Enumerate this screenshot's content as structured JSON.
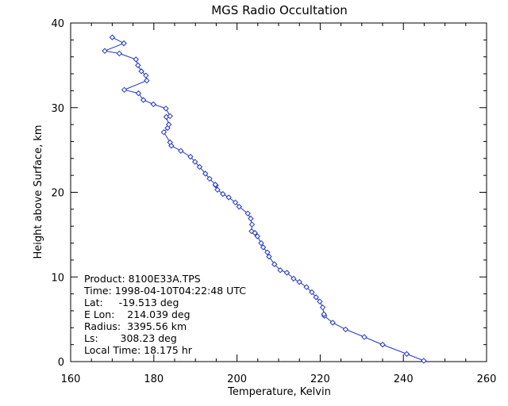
{
  "chart_data": {
    "type": "line",
    "title": "MGS Radio Occultation",
    "xlabel": "Temperature, Kelvin",
    "ylabel": "Height above Surface, km",
    "xlim": [
      160,
      260
    ],
    "ylim": [
      0,
      40
    ],
    "xticks": [
      "160",
      "180",
      "200",
      "220",
      "240",
      "260"
    ],
    "yticks": [
      "0",
      "10",
      "20",
      "30",
      "40"
    ],
    "grid": false,
    "line_color": "#1f36c8",
    "marker": "diamond",
    "series": [
      {
        "x": [
          244.9,
          240.8,
          235.0,
          230.6,
          226.1,
          223.0,
          221.0,
          220.9,
          220.6,
          219.9,
          219.0,
          218.0,
          216.7,
          215.0,
          213.6,
          212.0,
          210.4,
          209.0,
          207.7,
          207.3,
          206.3,
          205.8,
          204.9,
          204.3,
          203.5,
          203.6,
          203.3,
          202.6,
          200.5,
          199.6,
          198.0,
          196.6,
          195.3,
          194.9,
          194.8,
          193.4,
          192.4,
          191.0,
          189.9,
          188.8,
          186.5,
          184.2,
          183.9,
          182.4,
          183.3,
          183.6,
          183.0,
          183.9,
          182.9,
          179.9,
          177.5,
          176.3,
          172.9,
          178.3,
          178.1,
          177.0,
          176.2,
          175.7,
          171.7,
          168.2,
          172.8,
          170.0
        ],
        "y": [
          0.1,
          0.9,
          2.0,
          2.9,
          3.8,
          4.6,
          5.4,
          5.6,
          6.4,
          7.1,
          7.6,
          8.2,
          8.8,
          9.4,
          9.8,
          10.5,
          10.8,
          11.5,
          12.4,
          12.9,
          13.5,
          14.0,
          14.8,
          15.2,
          15.4,
          16.2,
          16.9,
          17.5,
          18.3,
          18.8,
          19.4,
          19.8,
          20.3,
          20.8,
          20.9,
          21.6,
          22.2,
          23.0,
          23.6,
          24.2,
          24.9,
          25.5,
          25.9,
          27.1,
          27.6,
          28.0,
          28.9,
          29.0,
          29.9,
          30.4,
          30.9,
          31.7,
          32.1,
          33.2,
          33.8,
          34.3,
          35.0,
          35.7,
          36.4,
          36.7,
          37.6,
          38.3
        ]
      }
    ]
  },
  "info": {
    "product": "Product: 8100E33A.TPS",
    "time": "Time: 1998-04-10T04:22:48 UTC",
    "lat": "Lat:     -19.513 deg",
    "elon": "E Lon:    214.039 deg",
    "radius": "Radius:  3395.56 km",
    "ls": "Ls:       308.23 deg",
    "local_time": "Local Time: 18.175 hr"
  }
}
